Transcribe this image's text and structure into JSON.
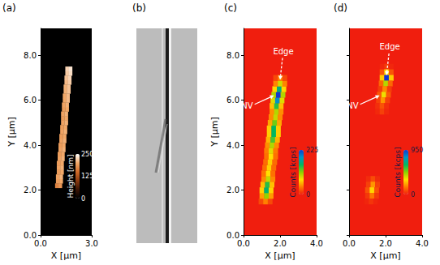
{
  "chart_data": [
    {
      "type": "heatmap",
      "label": "(a)",
      "x_label": "X [µm]",
      "y_label": "Y [µm]",
      "xlim": [
        0,
        3
      ],
      "ylim": [
        0,
        9.2
      ],
      "xticks": [
        {
          "value": 0,
          "label": "0.0"
        },
        {
          "value": 3,
          "label": "3.0"
        }
      ],
      "yticks": [
        {
          "value": 0,
          "label": "0.0"
        },
        {
          "value": 2,
          "label": "2.0"
        },
        {
          "value": 4,
          "label": "4.0"
        },
        {
          "value": 6,
          "label": "6.0"
        },
        {
          "value": 8,
          "label": "8.0"
        }
      ],
      "cell_size": 0.2,
      "cells": [
        [
          0.95,
          2.2,
          170
        ],
        [
          1.15,
          2.2,
          185
        ],
        [
          1.0,
          2.4,
          190
        ],
        [
          1.2,
          2.4,
          200
        ],
        [
          1.0,
          2.6,
          195
        ],
        [
          1.2,
          2.6,
          205
        ],
        [
          1.05,
          2.8,
          190
        ],
        [
          1.25,
          2.8,
          200
        ],
        [
          1.05,
          3.0,
          195
        ],
        [
          1.25,
          3.0,
          205
        ],
        [
          1.05,
          3.2,
          190
        ],
        [
          1.25,
          3.2,
          200
        ],
        [
          1.1,
          3.4,
          195
        ],
        [
          1.3,
          3.4,
          205
        ],
        [
          1.1,
          3.6,
          190
        ],
        [
          1.3,
          3.6,
          200
        ],
        [
          1.15,
          3.8,
          195
        ],
        [
          1.35,
          3.8,
          205
        ],
        [
          1.15,
          4.0,
          190
        ],
        [
          1.35,
          4.0,
          200
        ],
        [
          1.2,
          4.2,
          195
        ],
        [
          1.4,
          4.2,
          205
        ],
        [
          1.2,
          4.4,
          190
        ],
        [
          1.4,
          4.4,
          200
        ],
        [
          1.25,
          4.6,
          195
        ],
        [
          1.45,
          4.6,
          205
        ],
        [
          1.25,
          4.8,
          190
        ],
        [
          1.45,
          4.8,
          200
        ],
        [
          1.3,
          5.0,
          195
        ],
        [
          1.5,
          5.0,
          205
        ],
        [
          1.3,
          5.2,
          190
        ],
        [
          1.5,
          5.2,
          200
        ],
        [
          1.3,
          5.4,
          195
        ],
        [
          1.5,
          5.4,
          205
        ],
        [
          1.35,
          5.6,
          190
        ],
        [
          1.55,
          5.6,
          200
        ],
        [
          1.35,
          5.8,
          195
        ],
        [
          1.55,
          5.8,
          205
        ],
        [
          1.4,
          6.0,
          200
        ],
        [
          1.6,
          6.0,
          210
        ],
        [
          1.4,
          6.2,
          200
        ],
        [
          1.6,
          6.2,
          210
        ],
        [
          1.45,
          6.4,
          205
        ],
        [
          1.65,
          6.4,
          215
        ],
        [
          1.45,
          6.6,
          205
        ],
        [
          1.65,
          6.6,
          215
        ],
        [
          1.5,
          6.8,
          210
        ],
        [
          1.7,
          6.8,
          220
        ],
        [
          1.5,
          7.0,
          215
        ],
        [
          1.7,
          7.0,
          225
        ],
        [
          1.55,
          7.2,
          220
        ],
        [
          1.75,
          7.2,
          230
        ],
        [
          1.55,
          7.4,
          225
        ],
        [
          1.75,
          7.4,
          235
        ]
      ],
      "colorbar": {
        "label": "Height [nm]",
        "range": [
          0,
          250
        ],
        "ticks": [
          0,
          125,
          250
        ]
      }
    },
    {
      "type": "image",
      "label": "(b)"
    },
    {
      "type": "heatmap",
      "label": "(c)",
      "x_label": "X [µm]",
      "y_label": "Y [µm]",
      "xlim": [
        0,
        4
      ],
      "ylim": [
        0,
        9.2
      ],
      "xticks": [
        {
          "value": 0,
          "label": "0.0"
        },
        {
          "value": 2,
          "label": "2.0"
        },
        {
          "value": 4,
          "label": "4.0"
        }
      ],
      "yticks": [
        {
          "value": 0,
          "label": "0.0"
        },
        {
          "value": 2,
          "label": "2.0"
        },
        {
          "value": 4,
          "label": "4.0"
        },
        {
          "value": 6,
          "label": "6.0"
        },
        {
          "value": 8,
          "label": "8.0"
        }
      ],
      "cell_size": 0.25,
      "cells": [
        [
          0.95,
          1.5,
          18
        ],
        [
          1.2,
          1.5,
          40
        ],
        [
          1.45,
          1.5,
          18
        ],
        [
          1.0,
          1.75,
          50
        ],
        [
          1.25,
          1.75,
          110
        ],
        [
          1.5,
          1.75,
          50
        ],
        [
          1.0,
          2.0,
          70
        ],
        [
          1.25,
          2.0,
          155
        ],
        [
          1.5,
          2.0,
          70
        ],
        [
          1.05,
          2.25,
          63
        ],
        [
          1.3,
          2.25,
          140
        ],
        [
          1.55,
          2.25,
          63
        ],
        [
          1.1,
          2.5,
          43
        ],
        [
          1.35,
          2.5,
          95
        ],
        [
          1.6,
          2.5,
          43
        ],
        [
          1.1,
          2.75,
          34
        ],
        [
          1.35,
          2.75,
          75
        ],
        [
          1.6,
          2.75,
          34
        ],
        [
          1.15,
          3.0,
          32
        ],
        [
          1.4,
          3.0,
          70
        ],
        [
          1.65,
          3.0,
          32
        ],
        [
          1.2,
          3.25,
          32
        ],
        [
          1.45,
          3.25,
          70
        ],
        [
          1.7,
          3.25,
          32
        ],
        [
          1.25,
          3.5,
          34
        ],
        [
          1.5,
          3.5,
          75
        ],
        [
          1.75,
          3.5,
          34
        ],
        [
          1.25,
          3.75,
          38
        ],
        [
          1.5,
          3.75,
          85
        ],
        [
          1.75,
          3.75,
          38
        ],
        [
          1.3,
          4.0,
          45
        ],
        [
          1.55,
          4.0,
          100
        ],
        [
          1.8,
          4.0,
          45
        ],
        [
          1.35,
          4.25,
          59
        ],
        [
          1.6,
          4.25,
          130
        ],
        [
          1.85,
          4.25,
          59
        ],
        [
          1.4,
          4.5,
          68
        ],
        [
          1.65,
          4.5,
          150
        ],
        [
          1.9,
          4.5,
          68
        ],
        [
          1.4,
          4.75,
          68
        ],
        [
          1.65,
          4.75,
          150
        ],
        [
          1.9,
          4.75,
          68
        ],
        [
          1.45,
          5.0,
          54
        ],
        [
          1.7,
          5.0,
          120
        ],
        [
          1.95,
          5.0,
          54
        ],
        [
          1.5,
          5.25,
          43
        ],
        [
          1.75,
          5.25,
          95
        ],
        [
          2.0,
          5.25,
          43
        ],
        [
          1.55,
          5.5,
          45
        ],
        [
          1.8,
          5.5,
          100
        ],
        [
          2.05,
          5.5,
          45
        ],
        [
          1.55,
          5.75,
          63
        ],
        [
          1.8,
          5.75,
          140
        ],
        [
          2.05,
          5.75,
          63
        ],
        [
          1.6,
          6.0,
          86
        ],
        [
          1.85,
          6.0,
          190
        ],
        [
          2.1,
          6.0,
          86
        ],
        [
          1.65,
          6.25,
          101
        ],
        [
          1.9,
          6.25,
          225
        ],
        [
          2.15,
          6.25,
          101
        ],
        [
          1.7,
          6.5,
          72
        ],
        [
          1.95,
          6.5,
          160
        ],
        [
          2.2,
          6.5,
          72
        ],
        [
          1.75,
          6.75,
          41
        ],
        [
          2.0,
          6.75,
          90
        ],
        [
          2.25,
          6.75,
          41
        ],
        [
          1.75,
          7.0,
          18
        ],
        [
          2.0,
          7.0,
          40
        ],
        [
          2.25,
          7.0,
          18
        ]
      ],
      "colorbar": {
        "label": "Counts [kcps]",
        "range": [
          0,
          225
        ],
        "ticks": [
          0,
          225
        ]
      },
      "annotations": [
        {
          "text": "Edge",
          "x": 2.0,
          "y": 6.8,
          "line_style": "dashed"
        },
        {
          "text": "NV",
          "x": 1.85,
          "y": 6.25,
          "line_style": "solid"
        }
      ]
    },
    {
      "type": "heatmap",
      "label": "(d)",
      "x_label": "X [µm]",
      "tick_labels": "x",
      "xlim": [
        0,
        4
      ],
      "ylim": [
        0,
        9.2
      ],
      "xticks": [
        {
          "value": 0,
          "label": "0.0"
        },
        {
          "value": 2,
          "label": "2.0"
        },
        {
          "value": 4,
          "label": "4.0"
        }
      ],
      "yticks": [
        0,
        2,
        4,
        6,
        8
      ],
      "cell_size": 0.25,
      "cells": [
        [
          1.8,
          7.5,
          15
        ],
        [
          2.05,
          7.5,
          50
        ],
        [
          2.3,
          7.5,
          15
        ],
        [
          1.8,
          7.25,
          96
        ],
        [
          2.05,
          7.25,
          320
        ],
        [
          2.3,
          7.25,
          96
        ],
        [
          1.8,
          7.0,
          285
        ],
        [
          2.05,
          7.0,
          950
        ],
        [
          2.3,
          7.0,
          285
        ],
        [
          1.75,
          6.75,
          126
        ],
        [
          2.0,
          6.75,
          420
        ],
        [
          2.25,
          6.75,
          126
        ],
        [
          1.7,
          6.5,
          54
        ],
        [
          1.95,
          6.5,
          180
        ],
        [
          2.2,
          6.5,
          54
        ],
        [
          1.65,
          6.25,
          102
        ],
        [
          1.9,
          6.25,
          340
        ],
        [
          2.15,
          6.25,
          102
        ],
        [
          1.6,
          6.0,
          60
        ],
        [
          1.85,
          6.0,
          200
        ],
        [
          2.1,
          6.0,
          60
        ],
        [
          1.55,
          5.75,
          27
        ],
        [
          1.8,
          5.75,
          90
        ],
        [
          2.05,
          5.75,
          27
        ],
        [
          1.55,
          5.5,
          18
        ],
        [
          1.8,
          5.5,
          60
        ],
        [
          2.05,
          5.5,
          18
        ],
        [
          1.05,
          2.5,
          24
        ],
        [
          1.3,
          2.5,
          80
        ],
        [
          1.55,
          2.5,
          24
        ],
        [
          1.05,
          2.25,
          60
        ],
        [
          1.3,
          2.25,
          200
        ],
        [
          1.55,
          2.25,
          60
        ],
        [
          1.0,
          2.0,
          90
        ],
        [
          1.25,
          2.0,
          300
        ],
        [
          1.5,
          2.0,
          90
        ],
        [
          1.0,
          1.75,
          45
        ],
        [
          1.25,
          1.75,
          150
        ],
        [
          1.5,
          1.75,
          45
        ],
        [
          0.95,
          1.5,
          12
        ],
        [
          1.2,
          1.5,
          40
        ],
        [
          1.45,
          1.5,
          12
        ]
      ],
      "colorbar": {
        "label": "Counts [kcps]",
        "range": [
          0,
          950
        ],
        "ticks": [
          0,
          950
        ]
      },
      "annotations": [
        {
          "text": "Edge",
          "x": 2.05,
          "y": 7.0,
          "line_style": "dashed"
        },
        {
          "text": "NV",
          "x": 1.85,
          "y": 6.25,
          "line_style": "solid"
        }
      ]
    }
  ]
}
